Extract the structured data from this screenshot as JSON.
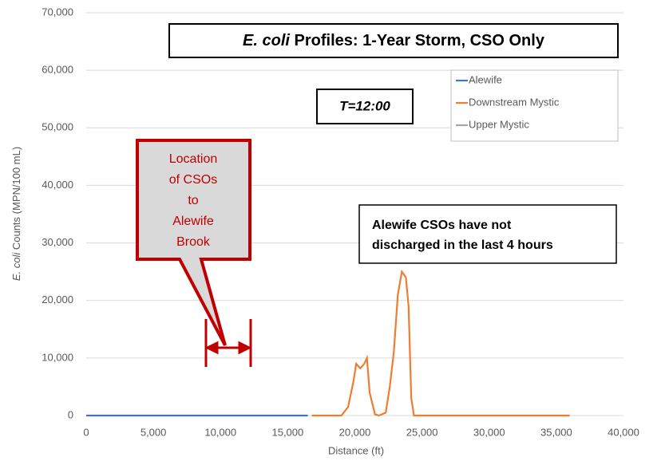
{
  "chart_data": {
    "type": "line",
    "title_italic": "E. coli",
    "title_rest": "Profiles:  1-Year Storm, CSO Only",
    "subtitle": "T=12:00",
    "xlabel": "Distance (ft)",
    "ylabel_italic": "E. coli",
    "ylabel_rest": "Counts (MPN/100 mL)",
    "callout": [
      "Location",
      "of CSOs",
      "to",
      "Alewife",
      "Brook"
    ],
    "annotation": [
      "Alewife CSOs have not",
      "discharged in the last 4 hours"
    ],
    "xlim": [
      0,
      40000
    ],
    "xticks": [
      0,
      {
        "value": 5000,
        "label": "5,000"
      },
      {
        "value": 10000,
        "label": "10,000"
      },
      {
        "value": 15000,
        "label": "15,000"
      },
      {
        "value": 20000,
        "label": "20,000"
      },
      {
        "value": 25000,
        "label": "25,000"
      },
      {
        "value": 30000,
        "label": "30,000"
      },
      {
        "value": 35000,
        "label": "35,000"
      },
      {
        "value": 40000,
        "label": "40,000"
      }
    ],
    "ylim": [
      0,
      70000
    ],
    "yticks": [
      0,
      {
        "value": 10000,
        "label": "10,000"
      },
      {
        "value": 20000,
        "label": "20,000"
      },
      {
        "value": 30000,
        "label": "30,000"
      },
      {
        "value": 40000,
        "label": "40,000"
      },
      {
        "value": 50000,
        "label": "50,000"
      },
      {
        "value": 60000,
        "label": "60,000"
      },
      {
        "value": 70000,
        "label": "70,000"
      }
    ],
    "grid": true,
    "legend": "upper right",
    "series": [
      {
        "name": "Alewife",
        "color": "#4472c4",
        "x": [
          0,
          16500
        ],
        "values": [
          0,
          0
        ]
      },
      {
        "name": "Downstream Mystic",
        "color": "#ed7d31",
        "x": [
          16800,
          19000,
          19500,
          19900,
          20100,
          20400,
          20700,
          20900,
          21100,
          21500,
          21800,
          22300,
          22600,
          22900,
          23200,
          23500,
          23800,
          24000,
          24200,
          24400,
          36000
        ],
        "values": [
          0,
          0,
          1500,
          6000,
          9000,
          8200,
          9000,
          10000,
          4000,
          200,
          0,
          500,
          5000,
          11000,
          21000,
          25000,
          24000,
          19000,
          3000,
          0,
          0
        ]
      },
      {
        "name": "Upper Mystic",
        "color": "#a5a5a5",
        "x": [],
        "values": []
      }
    ]
  }
}
